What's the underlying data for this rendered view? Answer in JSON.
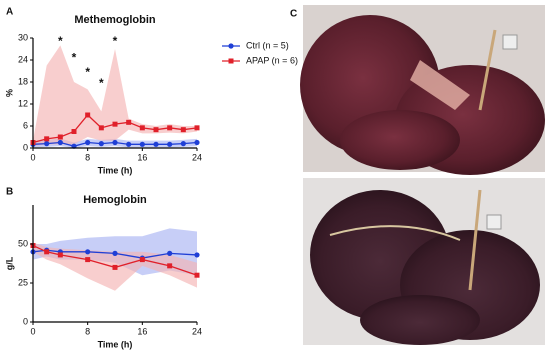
{
  "chart_data": [
    {
      "type": "line",
      "panel": "A",
      "title": "Methemoglobin",
      "x_label": "Time (h)",
      "y_label": "%",
      "x": [
        0,
        2,
        4,
        6,
        8,
        10,
        12,
        14,
        16,
        18,
        20,
        22,
        24
      ],
      "xlim": [
        0,
        24
      ],
      "xticks": [
        0,
        8,
        16,
        24
      ],
      "ylim": [
        0,
        30
      ],
      "yticks": [
        0,
        6,
        12,
        18,
        24,
        30
      ],
      "legend": "right",
      "series": [
        {
          "name": "Ctrl (n = 5)",
          "color": "#1f3fd6",
          "band_color": "#a9b3f2",
          "marker": "circle",
          "values": [
            1.0,
            1.2,
            1.5,
            0.5,
            1.5,
            1.2,
            1.5,
            1.0,
            1.0,
            1.0,
            1.0,
            1.2,
            1.5
          ],
          "upper": [
            2.0,
            2.2,
            2.6,
            1.5,
            2.5,
            2.2,
            2.5,
            2.0,
            2.0,
            2.0,
            2.0,
            2.2,
            2.5
          ],
          "lower": [
            0.2,
            0.3,
            0.5,
            0,
            0.5,
            0.3,
            0.5,
            0.2,
            0.2,
            0.2,
            0.2,
            0.3,
            0.5
          ]
        },
        {
          "name": "APAP (n = 6)",
          "color": "#e0202a",
          "band_color": "#f4b3b3",
          "marker": "square",
          "values": [
            1.5,
            2.5,
            3,
            4.5,
            9,
            5.5,
            6.5,
            7,
            5.5,
            5,
            5.5,
            5,
            5.5
          ],
          "upper": [
            2,
            22.5,
            28,
            18,
            16,
            10,
            27,
            8,
            6.5,
            6,
            6.5,
            6,
            6
          ],
          "lower": [
            0.5,
            1,
            1,
            1,
            3,
            2,
            2,
            5,
            4,
            4,
            4.2,
            4,
            4.5
          ]
        }
      ],
      "annotations": [
        {
          "text": "*",
          "x": 4,
          "y": 29
        },
        {
          "text": "*",
          "x": 6,
          "y": 24.5
        },
        {
          "text": "*",
          "x": 8,
          "y": 20.5
        },
        {
          "text": "*",
          "x": 10,
          "y": 17.5
        },
        {
          "text": "*",
          "x": 12,
          "y": 29
        }
      ]
    },
    {
      "type": "line",
      "panel": "B",
      "title": "Hemoglobin",
      "x_label": "Time (h)",
      "y_label": "g/L",
      "x": [
        0,
        2,
        4,
        8,
        12,
        16,
        20,
        24
      ],
      "xlim": [
        0,
        24
      ],
      "xticks": [
        0,
        8,
        16,
        24
      ],
      "ylim": [
        0,
        75
      ],
      "yticks": [
        0,
        25,
        50
      ],
      "series": [
        {
          "color": "#1f3fd6",
          "band_color": "#a9b3f2",
          "marker": "circle",
          "values": [
            45,
            46,
            45,
            45,
            44,
            41,
            44,
            43
          ],
          "upper": [
            50,
            50,
            52,
            54,
            55,
            55,
            60,
            58
          ],
          "lower": [
            40,
            42,
            40,
            40,
            38,
            30,
            33,
            30
          ]
        },
        {
          "color": "#e0202a",
          "band_color": "#f4b3b3",
          "marker": "square",
          "values": [
            49,
            45,
            43,
            40,
            35,
            40,
            36,
            30
          ],
          "upper": [
            51,
            48,
            47,
            46,
            45,
            45,
            43,
            38
          ],
          "lower": [
            45,
            40,
            37,
            28,
            20,
            36,
            30,
            22
          ]
        }
      ]
    }
  ],
  "photo_panel": {
    "label": "C"
  }
}
